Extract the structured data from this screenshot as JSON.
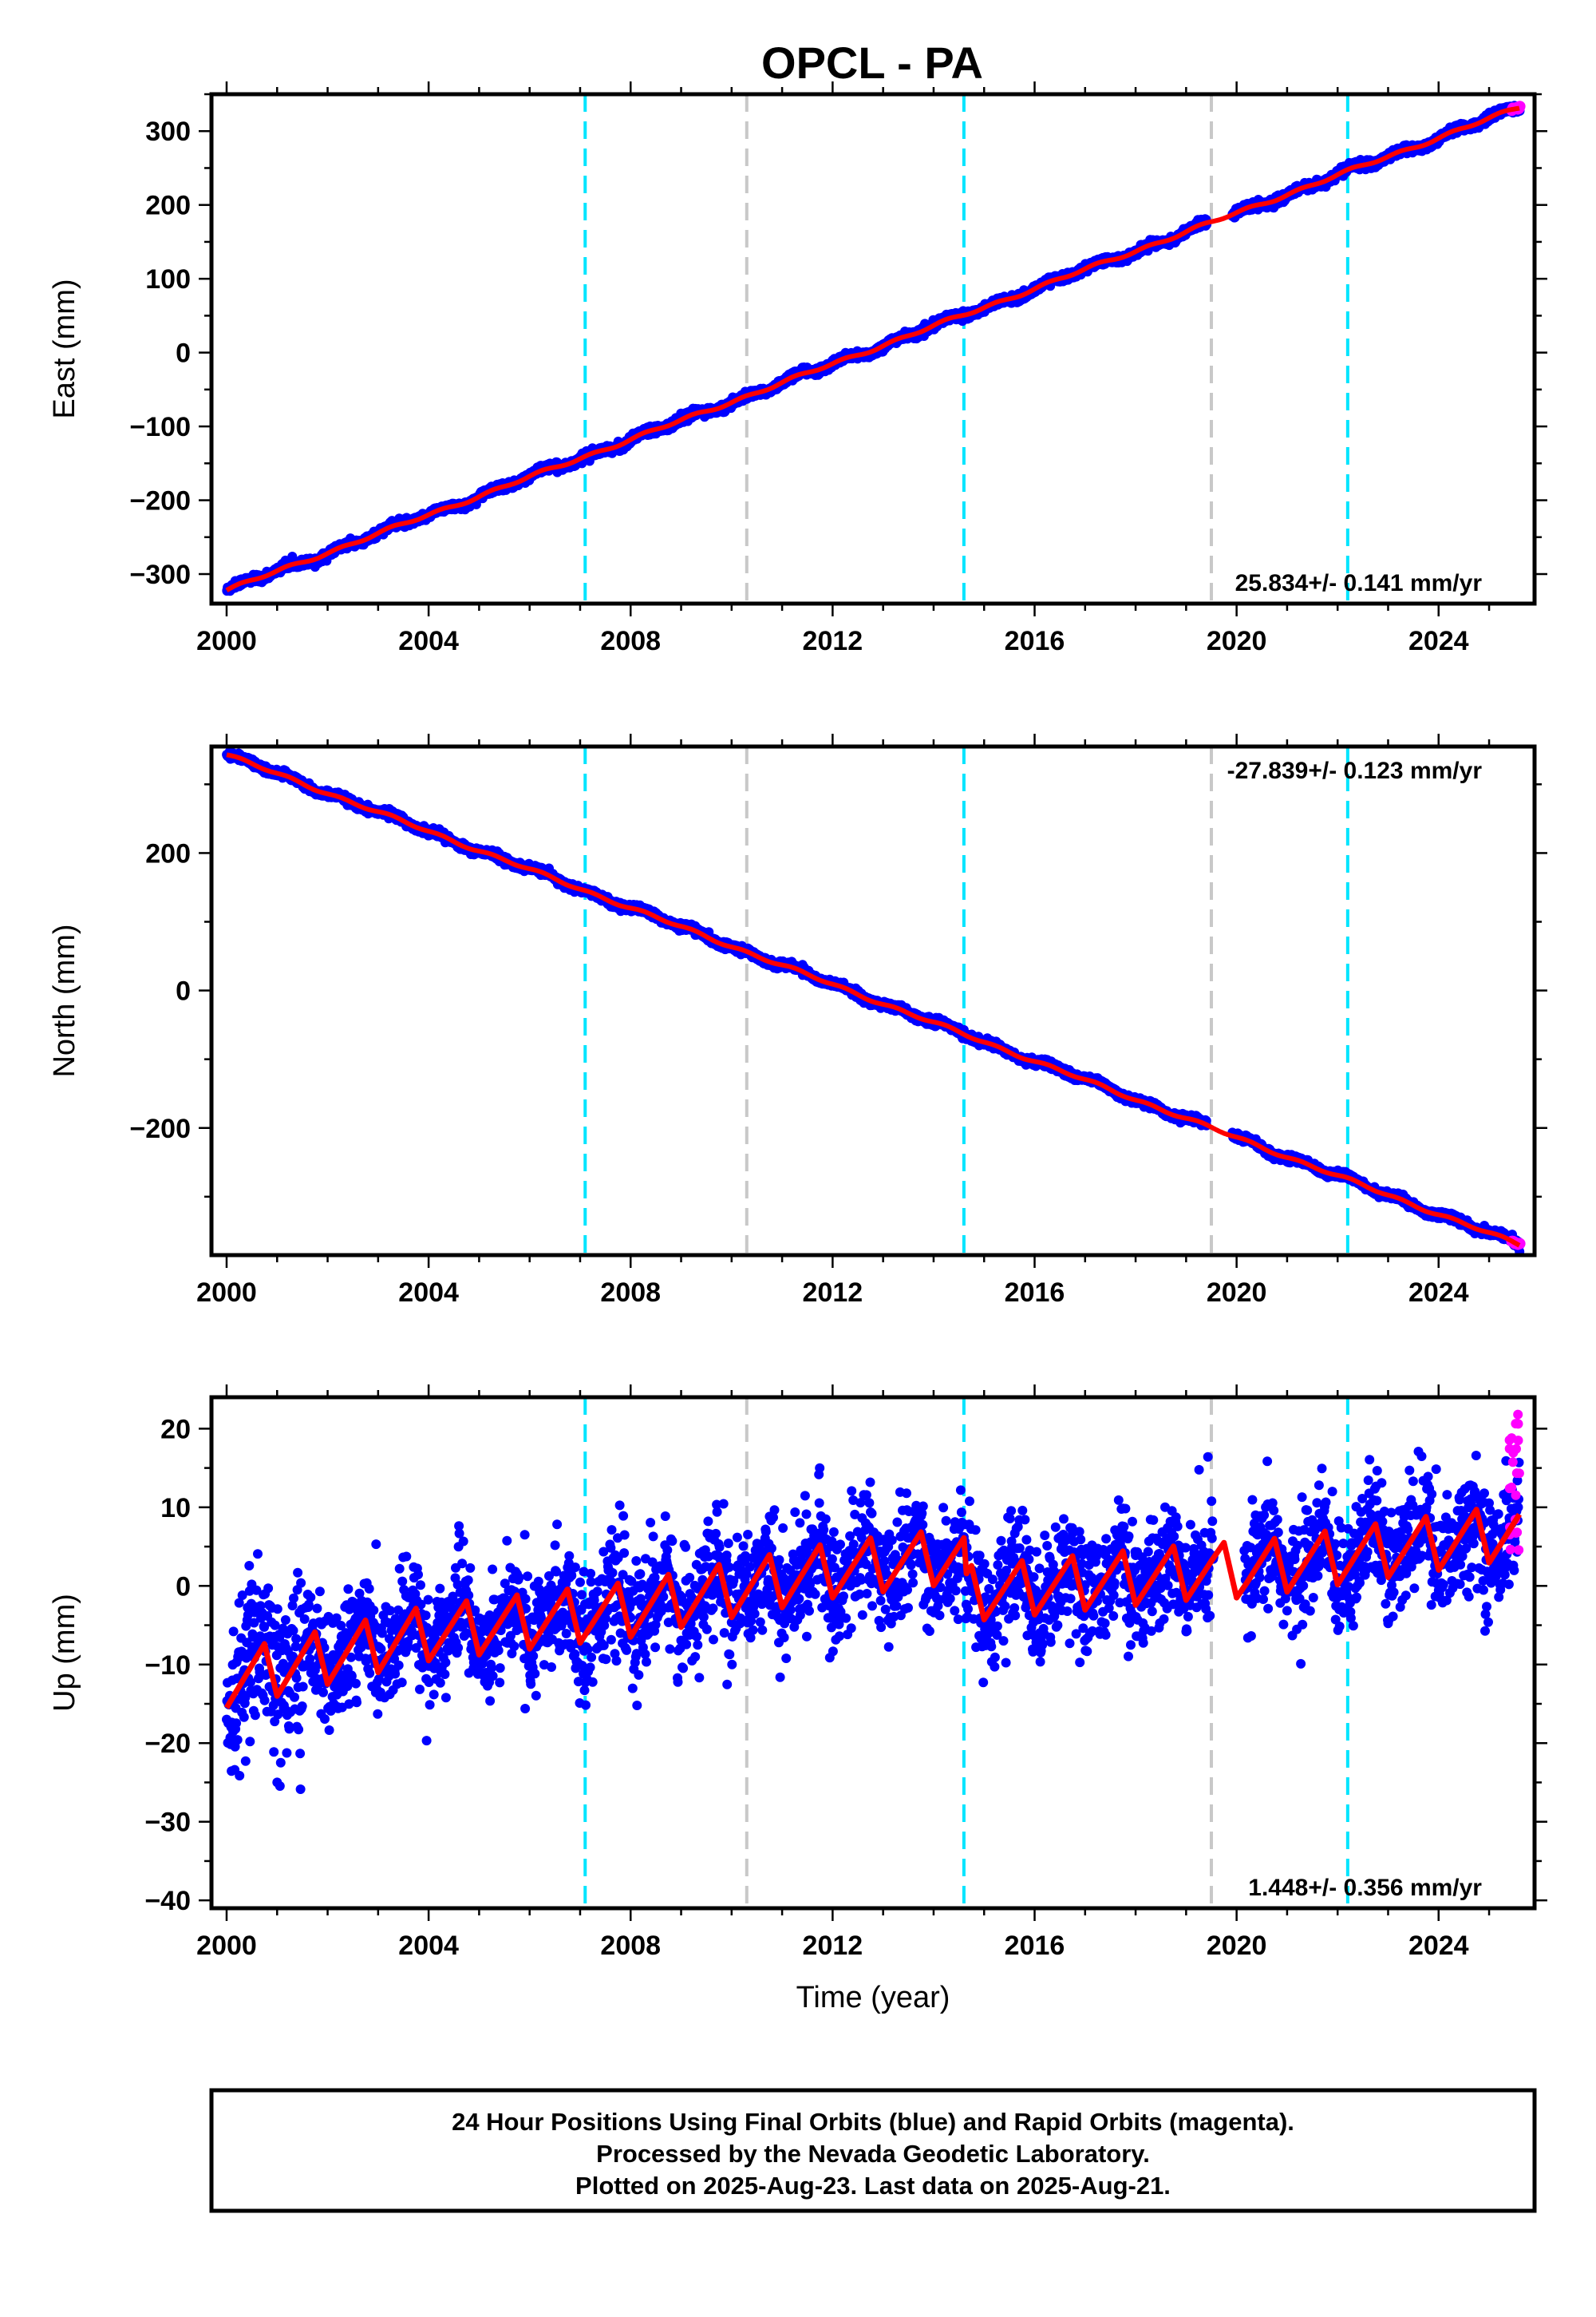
{
  "title": "OPCL - PA",
  "colors": {
    "final_orbits": "#0000ff",
    "rapid_orbits": "#ff00ff",
    "model": "#ff0000",
    "antenna_change": "#00e5ff",
    "equipment_change": "#c8c8c8"
  },
  "chart_data": [
    {
      "type": "scatter",
      "name": "east",
      "title": "OPCL - PA",
      "xlabel": "",
      "ylabel": "East (mm)",
      "xlim": [
        1999.7,
        2025.9
      ],
      "ylim": [
        -340,
        350
      ],
      "xticks": [
        "2000",
        "2004",
        "2008",
        "2012",
        "2016",
        "2020",
        "2024"
      ],
      "yticks": [
        "300",
        "200",
        "100",
        "0",
        "−100",
        "−200",
        "−300"
      ],
      "ytick_values": [
        300,
        200,
        100,
        0,
        -100,
        -200,
        -300
      ],
      "rate": "25.834+/- 0.141 mm/yr",
      "rate_position": "bottom-right",
      "trend": {
        "x": [
          2000.0,
          2025.6
        ],
        "y": [
          -322,
          332
        ]
      },
      "gap": [
        2019.4,
        2019.9
      ],
      "vlines_cyan": [
        2007.1,
        2014.6,
        2022.2
      ],
      "vlines_gray": [
        2010.3,
        2019.5
      ]
    },
    {
      "type": "scatter",
      "name": "north",
      "xlabel": "",
      "ylabel": "North (mm)",
      "xlim": [
        1999.7,
        2025.9
      ],
      "ylim": [
        -385,
        355
      ],
      "xticks": [
        "2000",
        "2004",
        "2008",
        "2012",
        "2016",
        "2020",
        "2024"
      ],
      "yticks": [
        "200",
        "0",
        "−200"
      ],
      "ytick_values": [
        200,
        0,
        -200
      ],
      "rate": "-27.839+/- 0.123 mm/yr",
      "rate_position": "top-right",
      "trend": {
        "x": [
          2000.0,
          2025.6
        ],
        "y": [
          343,
          -370
        ]
      },
      "gap": [
        2019.4,
        2019.9
      ],
      "vlines_cyan": [
        2007.1,
        2014.6,
        2022.2
      ],
      "vlines_gray": [
        2010.3,
        2019.5
      ]
    },
    {
      "type": "scatter",
      "name": "up",
      "xlabel": "Time (year)",
      "ylabel": "Up (mm)",
      "xlim": [
        1999.7,
        2025.9
      ],
      "ylim": [
        -41,
        24
      ],
      "xticks": [
        "2000",
        "2004",
        "2008",
        "2012",
        "2016",
        "2020",
        "2024"
      ],
      "yticks": [
        "20",
        "10",
        "0",
        "−10",
        "−20",
        "−30",
        "−40"
      ],
      "ytick_values": [
        20,
        10,
        0,
        -10,
        -20,
        -30,
        -40
      ],
      "rate": "1.448+/- 0.356 mm/yr",
      "rate_position": "bottom-right",
      "model_breaks": [
        {
          "x": 2000.0,
          "y": -12
        },
        {
          "x": 2004.0,
          "y": -6
        },
        {
          "x": 2008.0,
          "y": -3
        },
        {
          "x": 2012.0,
          "y": 2
        },
        {
          "x": 2014.6,
          "y": 4
        },
        {
          "x": 2014.65,
          "y": -1
        },
        {
          "x": 2019.5,
          "y": 2
        },
        {
          "x": 2020.2,
          "y": 2
        },
        {
          "x": 2025.6,
          "y": 7
        }
      ],
      "seasonal_amplitude_mm": 3.5,
      "rapid_points": {
        "x_range": [
          2025.4,
          2025.6
        ],
        "y_range": [
          4,
          23
        ]
      },
      "vlines_cyan": [
        2007.1,
        2014.6,
        2022.2
      ],
      "vlines_gray": [
        2010.3,
        2019.5
      ]
    }
  ],
  "footer": {
    "line1": "24 Hour Positions Using Final Orbits (blue) and Rapid Orbits (magenta).",
    "line2": "Processed by the Nevada Geodetic Laboratory.",
    "line3": "Plotted on 2025-Aug-23. Last data on 2025-Aug-21."
  }
}
